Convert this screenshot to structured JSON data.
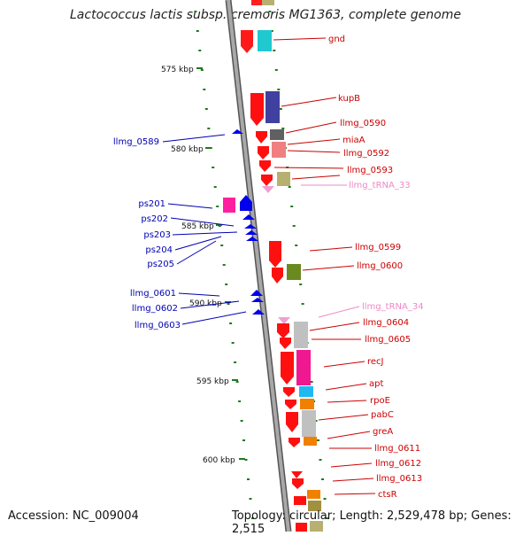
{
  "title": "Lactococcus lactis subsp. cremoris MG1363, complete genome",
  "footer": {
    "accession": "Accession: NC_009004",
    "topology": "Topology: circular; Length: 2,529,478 bp; Genes: 2,515"
  },
  "colors": {
    "backbone": "#9a9a9a",
    "ruler": "#1f7a1f",
    "forward_gene_label": "#cc0000",
    "forward_trna_label": "#ee88c8",
    "reverse_gene_label": "#0000b4",
    "cds_forward": "#ff0000",
    "cds_reverse": "#0000ff",
    "trna": "#f0a0d0"
  },
  "scale_labels": [
    "575 kbp",
    "580 kbp",
    "585 kbp",
    "590 kbp",
    "595 kbp",
    "600 kbp"
  ],
  "forward_labels": [
    "gnd",
    "kupB",
    "llmg_0590",
    "miaA",
    "llmg_0592",
    "llmg_0593",
    "llmg_tRNA_33",
    "llmg_0599",
    "llmg_0600",
    "llmg_tRNA_34",
    "llmg_0604",
    "llmg_0605",
    "recJ",
    "apt",
    "rpoE",
    "pabC",
    "greA",
    "llmg_0611",
    "llmg_0612",
    "llmg_0613",
    "ctsR"
  ],
  "reverse_labels": [
    "llmg_0589",
    "ps201",
    "ps202",
    "ps203",
    "ps204",
    "ps205",
    "llmg_0601",
    "llmg_0602",
    "llmg_0603"
  ]
}
